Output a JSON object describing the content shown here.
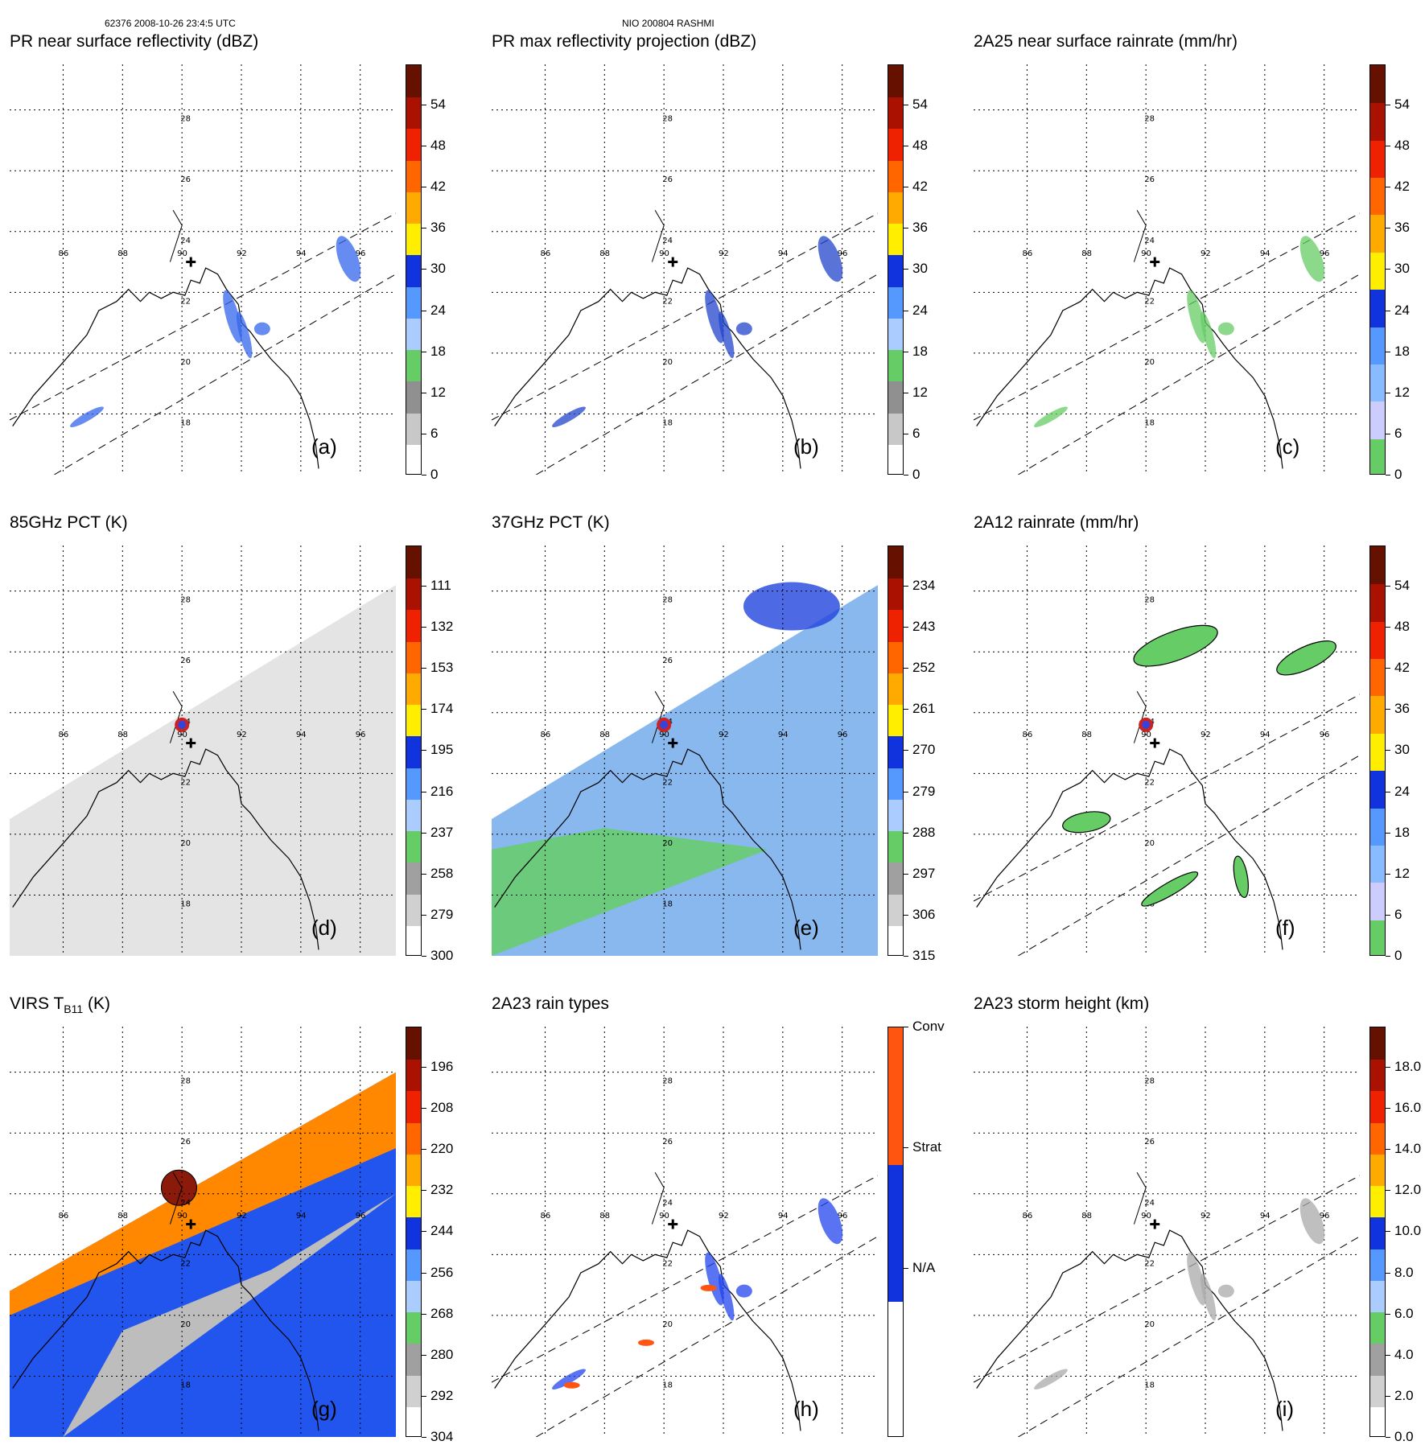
{
  "header": {
    "left": "62376 2008-10-26 23:4:5 UTC",
    "center": "NIO 200804 RASHMI"
  },
  "chart_data": [
    {
      "id": "a",
      "type": "heatmap",
      "title": "PR near surface reflectivity (dBZ)",
      "panel_label": "(a)",
      "lat_ticks": [
        "28",
        "26",
        "24",
        "22",
        "20",
        "18"
      ],
      "lon_ticks": [
        "86",
        "88",
        "90",
        "92",
        "94",
        "96"
      ],
      "colorbar": {
        "ticks": [
          "54",
          "48",
          "42",
          "36",
          "30",
          "24",
          "18",
          "12",
          "6",
          "0"
        ],
        "min": 0,
        "max": 60,
        "colors": [
          "#ffffff",
          "#c8c8c8",
          "#909090",
          "#66cc66",
          "#aaccff",
          "#5599ff",
          "#1133dd",
          "#ffee00",
          "#ffaa00",
          "#ff6600",
          "#ee2200",
          "#aa1100",
          "#661100"
        ]
      },
      "swath": "PR",
      "storm_center": {
        "lon": 90.3,
        "lat": 23.0
      }
    },
    {
      "id": "b",
      "type": "heatmap",
      "title": "PR max reflectivity projection (dBZ)",
      "panel_label": "(b)",
      "lat_ticks": [
        "28",
        "26",
        "24",
        "22",
        "20",
        "18"
      ],
      "lon_ticks": [
        "86",
        "88",
        "90",
        "92",
        "94",
        "96"
      ],
      "colorbar": {
        "ticks": [
          "54",
          "48",
          "42",
          "36",
          "30",
          "24",
          "18",
          "12",
          "6",
          "0"
        ],
        "min": 0,
        "max": 60,
        "colors": [
          "#ffffff",
          "#c8c8c8",
          "#909090",
          "#66cc66",
          "#aaccff",
          "#5599ff",
          "#1133dd",
          "#ffee00",
          "#ffaa00",
          "#ff6600",
          "#ee2200",
          "#aa1100",
          "#661100"
        ]
      },
      "swath": "PR",
      "storm_center": {
        "lon": 90.3,
        "lat": 23.0
      }
    },
    {
      "id": "c",
      "type": "heatmap",
      "title": "2A25 near surface rainrate (mm/hr)",
      "panel_label": "(c)",
      "lat_ticks": [
        "28",
        "26",
        "24",
        "22",
        "20",
        "18"
      ],
      "lon_ticks": [
        "86",
        "88",
        "90",
        "92",
        "94",
        "96"
      ],
      "colorbar": {
        "ticks": [
          "54",
          "48",
          "42",
          "36",
          "30",
          "24",
          "18",
          "12",
          "6",
          "0"
        ],
        "min": 0,
        "max": 60,
        "colors": [
          "#66cc66",
          "#ccccff",
          "#88bbff",
          "#5599ff",
          "#1133dd",
          "#ffee00",
          "#ffaa00",
          "#ff6600",
          "#ee2200",
          "#aa1100",
          "#661100"
        ]
      },
      "swath": "PR",
      "storm_center": {
        "lon": 90.3,
        "lat": 23.0
      }
    },
    {
      "id": "d",
      "type": "heatmap",
      "title": "85GHz PCT (K)",
      "panel_label": "(d)",
      "lat_ticks": [
        "28",
        "26",
        "24",
        "22",
        "20",
        "18"
      ],
      "lon_ticks": [
        "86",
        "88",
        "90",
        "92",
        "94",
        "96"
      ],
      "colorbar": {
        "ticks": [
          "111",
          "132",
          "153",
          "174",
          "195",
          "216",
          "237",
          "258",
          "279",
          "300"
        ],
        "min": 90,
        "max": 300,
        "colors": [
          "#ffffff",
          "#d0d0d0",
          "#a0a0a0",
          "#66cc66",
          "#aaccff",
          "#5599ff",
          "#1133dd",
          "#ffee00",
          "#ffaa00",
          "#ff6600",
          "#ee2200",
          "#aa1100",
          "#661100"
        ]
      },
      "swath": "TMI",
      "storm_center": {
        "lon": 90.3,
        "lat": 23.0
      }
    },
    {
      "id": "e",
      "type": "heatmap",
      "title": "37GHz PCT (K)",
      "panel_label": "(e)",
      "lat_ticks": [
        "28",
        "26",
        "24",
        "22",
        "20",
        "18"
      ],
      "lon_ticks": [
        "86",
        "88",
        "90",
        "92",
        "94",
        "96"
      ],
      "colorbar": {
        "ticks": [
          "234",
          "243",
          "252",
          "261",
          "270",
          "279",
          "288",
          "297",
          "306",
          "315"
        ],
        "min": 225,
        "max": 315,
        "colors": [
          "#ffffff",
          "#d0d0d0",
          "#a0a0a0",
          "#66cc66",
          "#aaccff",
          "#5599ff",
          "#1133dd",
          "#ffee00",
          "#ffaa00",
          "#ff6600",
          "#ee2200",
          "#aa1100",
          "#661100"
        ]
      },
      "swath": "TMI",
      "storm_center": {
        "lon": 90.3,
        "lat": 23.0
      }
    },
    {
      "id": "f",
      "type": "heatmap",
      "title": "2A12 rainrate (mm/hr)",
      "panel_label": "(f)",
      "lat_ticks": [
        "28",
        "26",
        "24",
        "22",
        "20",
        "18"
      ],
      "lon_ticks": [
        "86",
        "88",
        "90",
        "92",
        "94",
        "96"
      ],
      "colorbar": {
        "ticks": [
          "54",
          "48",
          "42",
          "36",
          "30",
          "24",
          "18",
          "12",
          "6",
          "0"
        ],
        "min": 0,
        "max": 60,
        "colors": [
          "#66cc66",
          "#ccccff",
          "#88bbff",
          "#5599ff",
          "#1133dd",
          "#ffee00",
          "#ffaa00",
          "#ff6600",
          "#ee2200",
          "#aa1100",
          "#661100"
        ]
      },
      "swath": "TMI",
      "storm_center": {
        "lon": 90.3,
        "lat": 23.0
      }
    },
    {
      "id": "g",
      "type": "heatmap",
      "title": "VIRS T",
      "title_sub": "B11",
      "title_unit": "(K)",
      "panel_label": "(g)",
      "lat_ticks": [
        "28",
        "26",
        "24",
        "22",
        "20",
        "18"
      ],
      "lon_ticks": [
        "86",
        "88",
        "90",
        "92",
        "94",
        "96"
      ],
      "colorbar": {
        "ticks": [
          "196",
          "208",
          "220",
          "232",
          "244",
          "256",
          "268",
          "280",
          "292",
          "304"
        ],
        "min": 184,
        "max": 304,
        "colors": [
          "#ffffff",
          "#d0d0d0",
          "#a0a0a0",
          "#66cc66",
          "#aaccff",
          "#5599ff",
          "#1133dd",
          "#ffee00",
          "#ffaa00",
          "#ff6600",
          "#ee2200",
          "#aa1100",
          "#661100"
        ]
      },
      "swath": "VIRS",
      "storm_center": {
        "lon": 90.3,
        "lat": 23.0
      }
    },
    {
      "id": "h",
      "type": "heatmap",
      "title": "2A23 rain types",
      "panel_label": "(h)",
      "lat_ticks": [
        "28",
        "26",
        "24",
        "22",
        "20",
        "18"
      ],
      "lon_ticks": [
        "86",
        "88",
        "90",
        "92",
        "94",
        "96"
      ],
      "colorbar": {
        "categorical": true,
        "ticks": [
          "Conv",
          "Strat",
          "N/A"
        ],
        "colors": [
          "#ffffff",
          "#1133dd",
          "#ff5511"
        ]
      },
      "swath": "PR",
      "storm_center": {
        "lon": 90.3,
        "lat": 23.0
      }
    },
    {
      "id": "i",
      "type": "heatmap",
      "title": "2A23 storm height (km)",
      "panel_label": "(i)",
      "lat_ticks": [
        "28",
        "26",
        "24",
        "22",
        "20",
        "18"
      ],
      "lon_ticks": [
        "86",
        "88",
        "90",
        "92",
        "94",
        "96"
      ],
      "colorbar": {
        "ticks": [
          "18.0",
          "16.0",
          "14.0",
          "12.0",
          "10.0",
          "8.0",
          "6.0",
          "4.0",
          "2.0",
          "0.0"
        ],
        "min": 0,
        "max": 20,
        "colors": [
          "#ffffff",
          "#d0d0d0",
          "#a0a0a0",
          "#66cc66",
          "#aaccff",
          "#5599ff",
          "#1133dd",
          "#ffee00",
          "#ffaa00",
          "#ff6600",
          "#ee2200",
          "#aa1100",
          "#661100"
        ]
      },
      "swath": "PR",
      "storm_center": {
        "lon": 90.3,
        "lat": 23.0
      }
    }
  ]
}
